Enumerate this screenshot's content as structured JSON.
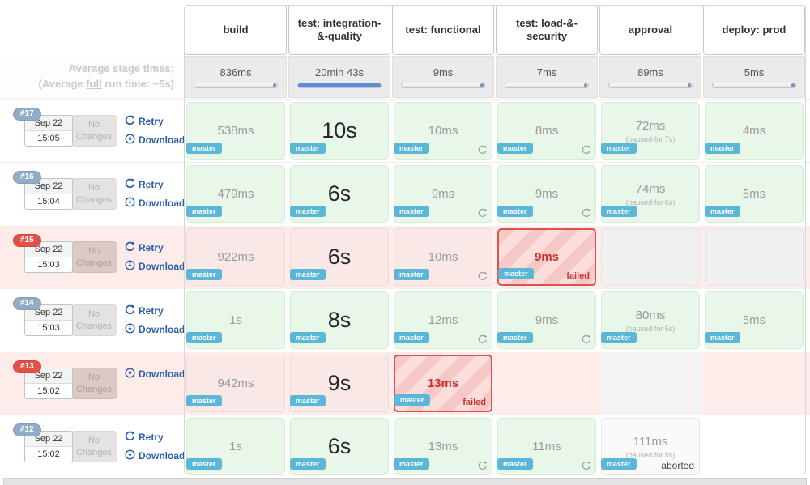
{
  "stages": [
    "build",
    "test: integration-&-quality",
    "test: functional",
    "test: load-&-security",
    "approval",
    "deploy: prod"
  ],
  "averages": {
    "caption_line1": "Average stage times:",
    "caption_pre": "(Average ",
    "caption_underlined": "full",
    "caption_post": " run time: ~5s)",
    "times": [
      "836ms",
      "20min 43s",
      "9ms",
      "7ms",
      "89ms",
      "5ms"
    ],
    "bars": [
      "tick",
      "full",
      "tick",
      "tick",
      "tick",
      "tick"
    ]
  },
  "labels": {
    "retry": "Retry",
    "download": "Download",
    "failed": "failed",
    "aborted": "aborted",
    "branch": "master",
    "no_changes_line1": "No",
    "no_changes_line2": "Changes"
  },
  "colors": {
    "accent_bar_blue": "#5e8ed6",
    "link_blue": "#2a5db0",
    "master_badge_blue": "#5bb7d8",
    "run_badge_blue": "#92abc7",
    "run_badge_red": "#df5149",
    "failed_border_red": "#d9534f",
    "ok_cell_green": "#e9f7e9",
    "failed_row_pink": "#fdece9"
  },
  "runs": [
    {
      "id": "#17",
      "failed": false,
      "date": "Sep 22",
      "time": "15:05",
      "retry": true,
      "download": true,
      "cells": [
        {
          "v": "green",
          "t": "538ms",
          "m": true
        },
        {
          "v": "green-big",
          "t": "10s",
          "m": true
        },
        {
          "v": "green",
          "t": "10ms",
          "m": true,
          "r": true
        },
        {
          "v": "green",
          "t": "8ms",
          "m": true,
          "r": true
        },
        {
          "v": "green",
          "t": "72ms",
          "m": true,
          "p": "(paused for 7s)"
        },
        {
          "v": "green",
          "t": "4ms",
          "m": true
        }
      ]
    },
    {
      "id": "#16",
      "failed": false,
      "date": "Sep 22",
      "time": "15:04",
      "retry": true,
      "download": true,
      "cells": [
        {
          "v": "green",
          "t": "479ms",
          "m": true
        },
        {
          "v": "green-big",
          "t": "6s",
          "m": true
        },
        {
          "v": "green",
          "t": "9ms",
          "m": true,
          "r": true
        },
        {
          "v": "green",
          "t": "9ms",
          "m": true,
          "r": true
        },
        {
          "v": "green",
          "t": "74ms",
          "m": true,
          "p": "(paused for 6s)"
        },
        {
          "v": "green",
          "t": "5ms",
          "m": true
        }
      ]
    },
    {
      "id": "#15",
      "failed": true,
      "date": "Sep 22",
      "time": "15:03",
      "retry": true,
      "download": true,
      "cells": [
        {
          "v": "pink",
          "t": "922ms",
          "m": true
        },
        {
          "v": "pink-big",
          "t": "6s",
          "m": true
        },
        {
          "v": "pink",
          "t": "10ms",
          "m": true,
          "r": true
        },
        {
          "v": "failed",
          "t": "9ms",
          "m": true,
          "label": "failed"
        },
        {
          "v": "gray"
        },
        {
          "v": "gray"
        }
      ]
    },
    {
      "id": "#14",
      "failed": false,
      "date": "Sep 22",
      "time": "15:03",
      "retry": true,
      "download": true,
      "cells": [
        {
          "v": "green",
          "t": "1s",
          "m": true
        },
        {
          "v": "green-big",
          "t": "8s",
          "m": true
        },
        {
          "v": "green",
          "t": "12ms",
          "m": true,
          "r": true
        },
        {
          "v": "green",
          "t": "9ms",
          "m": true,
          "r": true
        },
        {
          "v": "green",
          "t": "80ms",
          "m": true,
          "p": "(paused for 5s)"
        },
        {
          "v": "green",
          "t": "5ms",
          "m": true
        }
      ]
    },
    {
      "id": "#13",
      "failed": true,
      "date": "Sep 22",
      "time": "15:02",
      "retry": false,
      "download": true,
      "cells": [
        {
          "v": "pink",
          "t": "942ms",
          "m": true
        },
        {
          "v": "pink-big",
          "t": "9s",
          "m": true
        },
        {
          "v": "failed",
          "t": "13ms",
          "m": true,
          "label": "failed"
        },
        {
          "v": "none"
        },
        {
          "v": "stripe"
        },
        {
          "v": "none"
        }
      ]
    },
    {
      "id": "#12",
      "failed": false,
      "date": "Sep 22",
      "time": "15:02",
      "retry": true,
      "download": true,
      "cells": [
        {
          "v": "green",
          "t": "1s",
          "m": true
        },
        {
          "v": "green-big",
          "t": "6s",
          "m": true
        },
        {
          "v": "green",
          "t": "13ms",
          "m": true,
          "r": true
        },
        {
          "v": "green",
          "t": "11ms",
          "m": true,
          "r": true
        },
        {
          "v": "aborted",
          "t": "111ms",
          "m": true,
          "p": "(paused for 5s)",
          "label": "aborted"
        },
        {
          "v": "none"
        }
      ]
    }
  ]
}
